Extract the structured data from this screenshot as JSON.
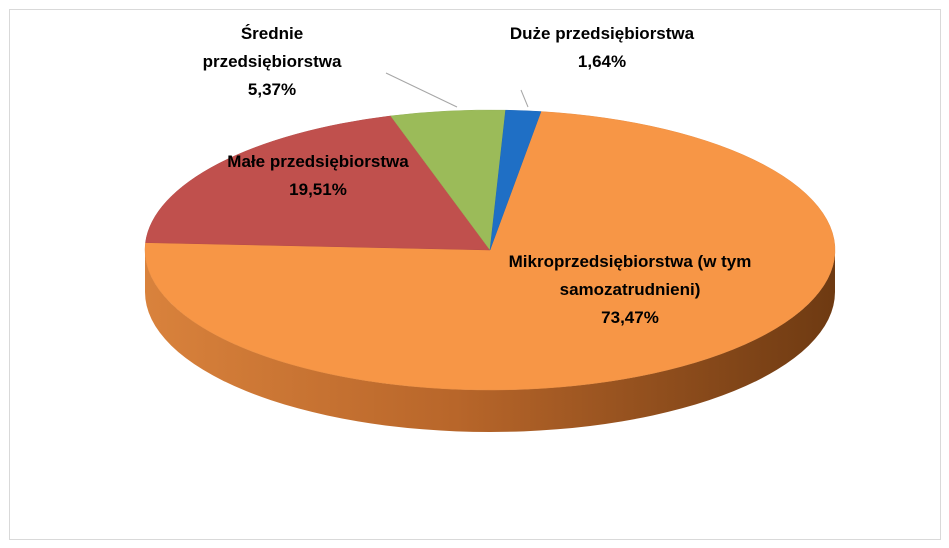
{
  "chart_data": {
    "type": "pie3d",
    "categories": [
      "Mikroprzedsiębiorstwa (w tym samozatrudnieni)",
      "Małe przedsiębiorstwa",
      "Średnie przedsiębiorstwa",
      "Duże przedsiębiorstwa"
    ],
    "values": [
      73.47,
      19.51,
      5.37,
      1.64
    ],
    "value_labels": [
      "73,47%",
      "19,51%",
      "5,37%",
      "1,64%"
    ],
    "colors": [
      "#f79646",
      "#c0504d",
      "#9bbb59",
      "#1f6fc5"
    ]
  }
}
